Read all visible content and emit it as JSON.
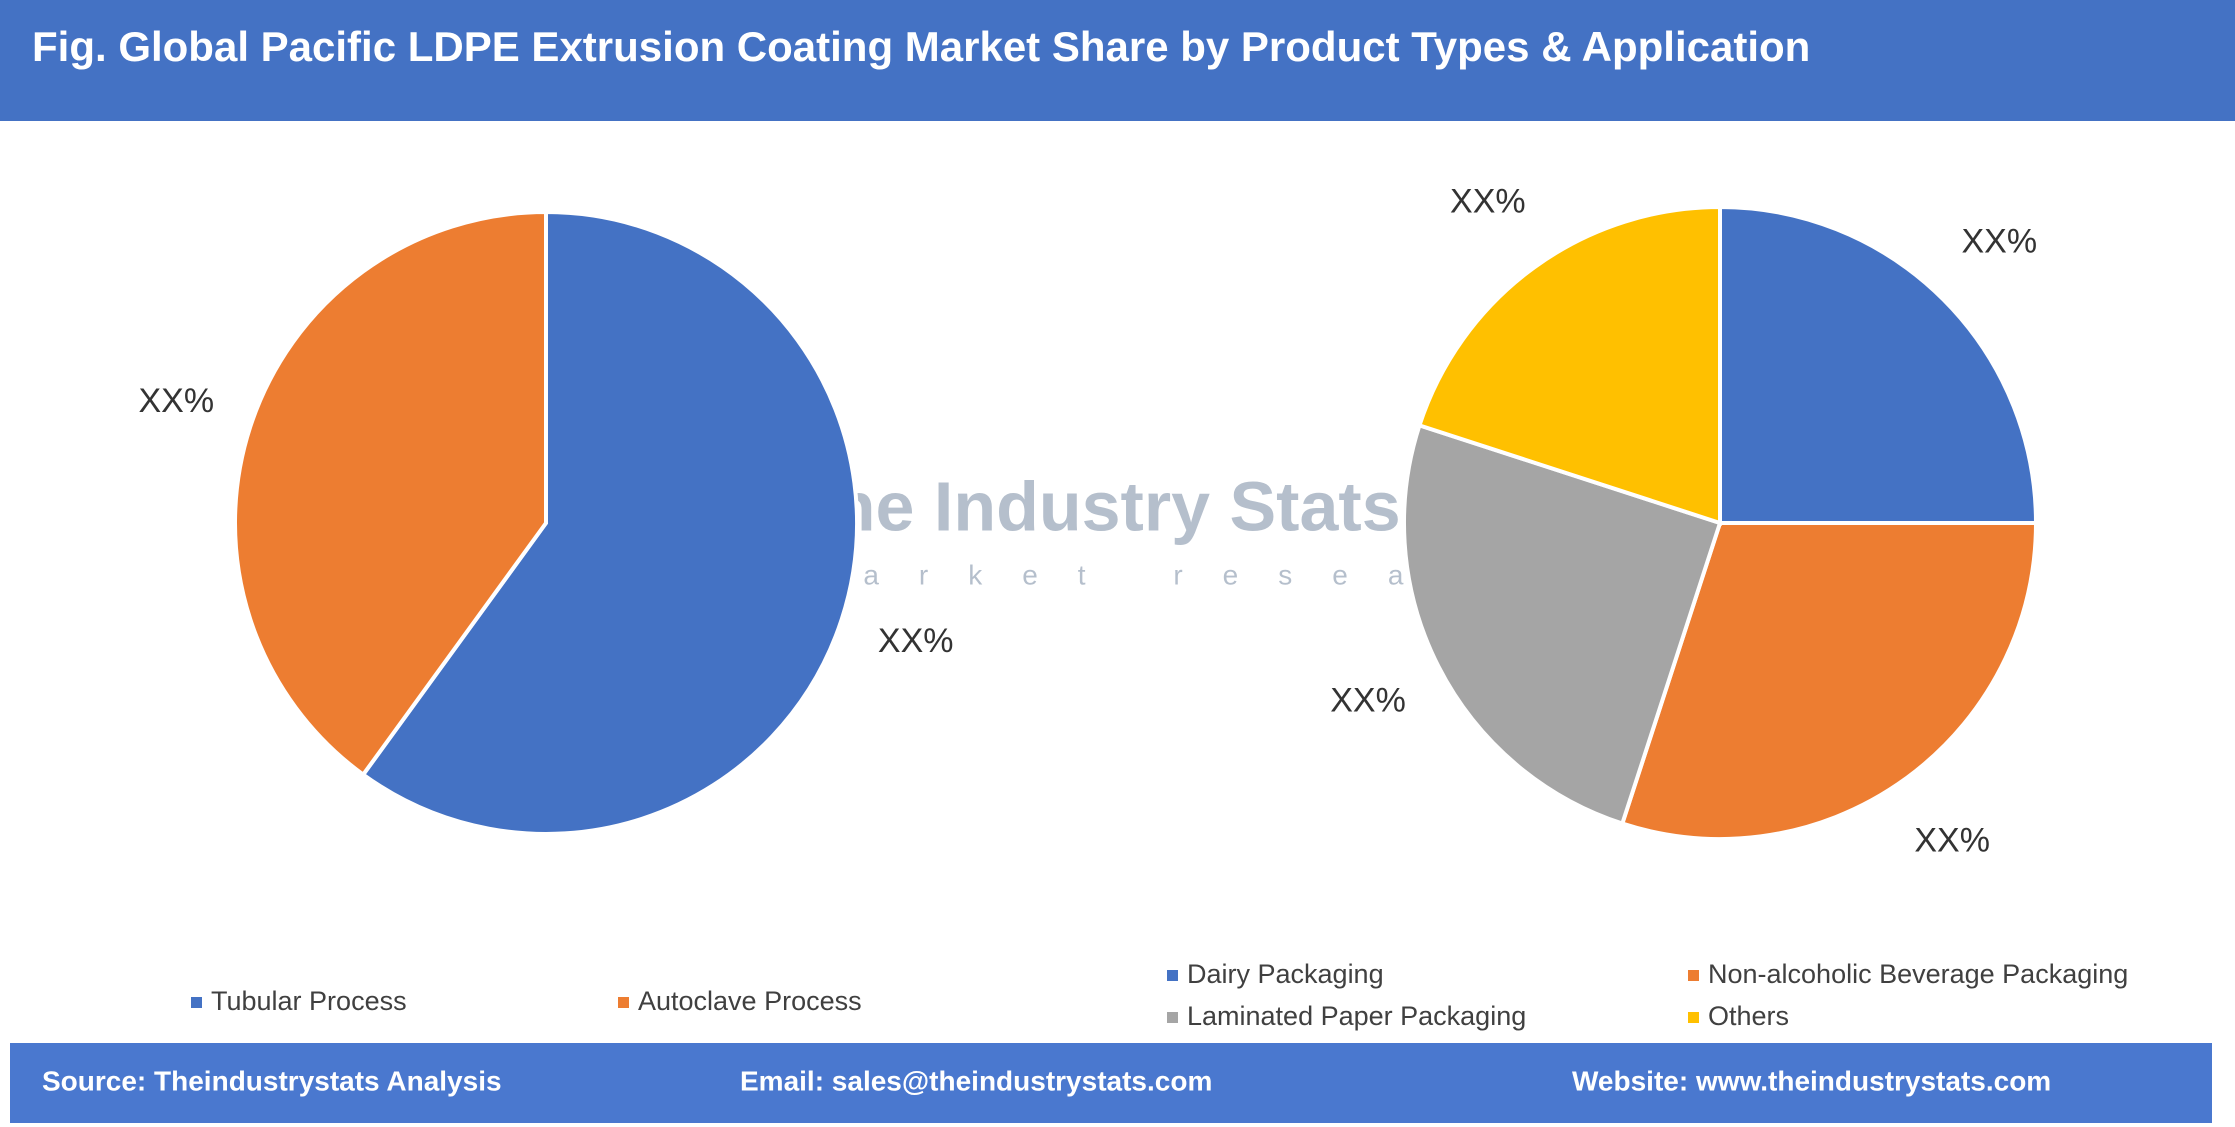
{
  "title": "Fig. Global Pacific LDPE Extrusion Coating Market Share by Product Types & Application",
  "watermark": {
    "name": "The Industry Stats",
    "tagline": "market research"
  },
  "chart_data": [
    {
      "type": "pie",
      "categories": [
        "Tubular Process",
        "Autoclave Process"
      ],
      "values": [
        60,
        40
      ],
      "value_labels": [
        "XX%",
        "XX%"
      ],
      "colors": [
        "#4472c4",
        "#ed7d31"
      ]
    },
    {
      "type": "pie",
      "categories": [
        "Dairy Packaging",
        "Non-alcoholic Beverage Packaging",
        "Laminated Paper Packaging",
        "Others"
      ],
      "values": [
        25,
        30,
        25,
        20
      ],
      "value_labels": [
        "XX%",
        "XX%",
        "XX%",
        "XX%"
      ],
      "colors": [
        "#4472c4",
        "#ed7d31",
        "#a5a5a5",
        "#ffc000"
      ]
    }
  ],
  "footer": {
    "source": "Source: Theindustrystats Analysis",
    "email": "Email: sales@theindustrystats.com",
    "website": "Website: www.theindustrystats.com"
  }
}
